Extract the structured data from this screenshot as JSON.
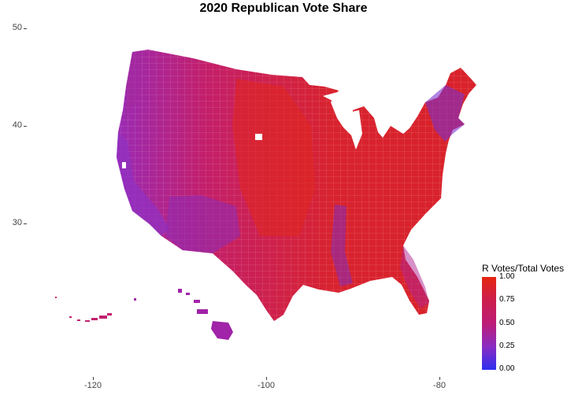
{
  "title": "2020 Republican Vote Share",
  "axes": {
    "y_ticks": [
      "50",
      "40",
      "30"
    ],
    "x_ticks": [
      "-120",
      "-100",
      "-80"
    ]
  },
  "legend": {
    "title": "R Votes/Total Votes",
    "labels": [
      "1.00",
      "0.75",
      "0.50",
      "0.25",
      "0.00"
    ],
    "colors": {
      "high": "#e5260f",
      "mid": "#bd1c77",
      "low": "#2e2ef0"
    }
  }
}
